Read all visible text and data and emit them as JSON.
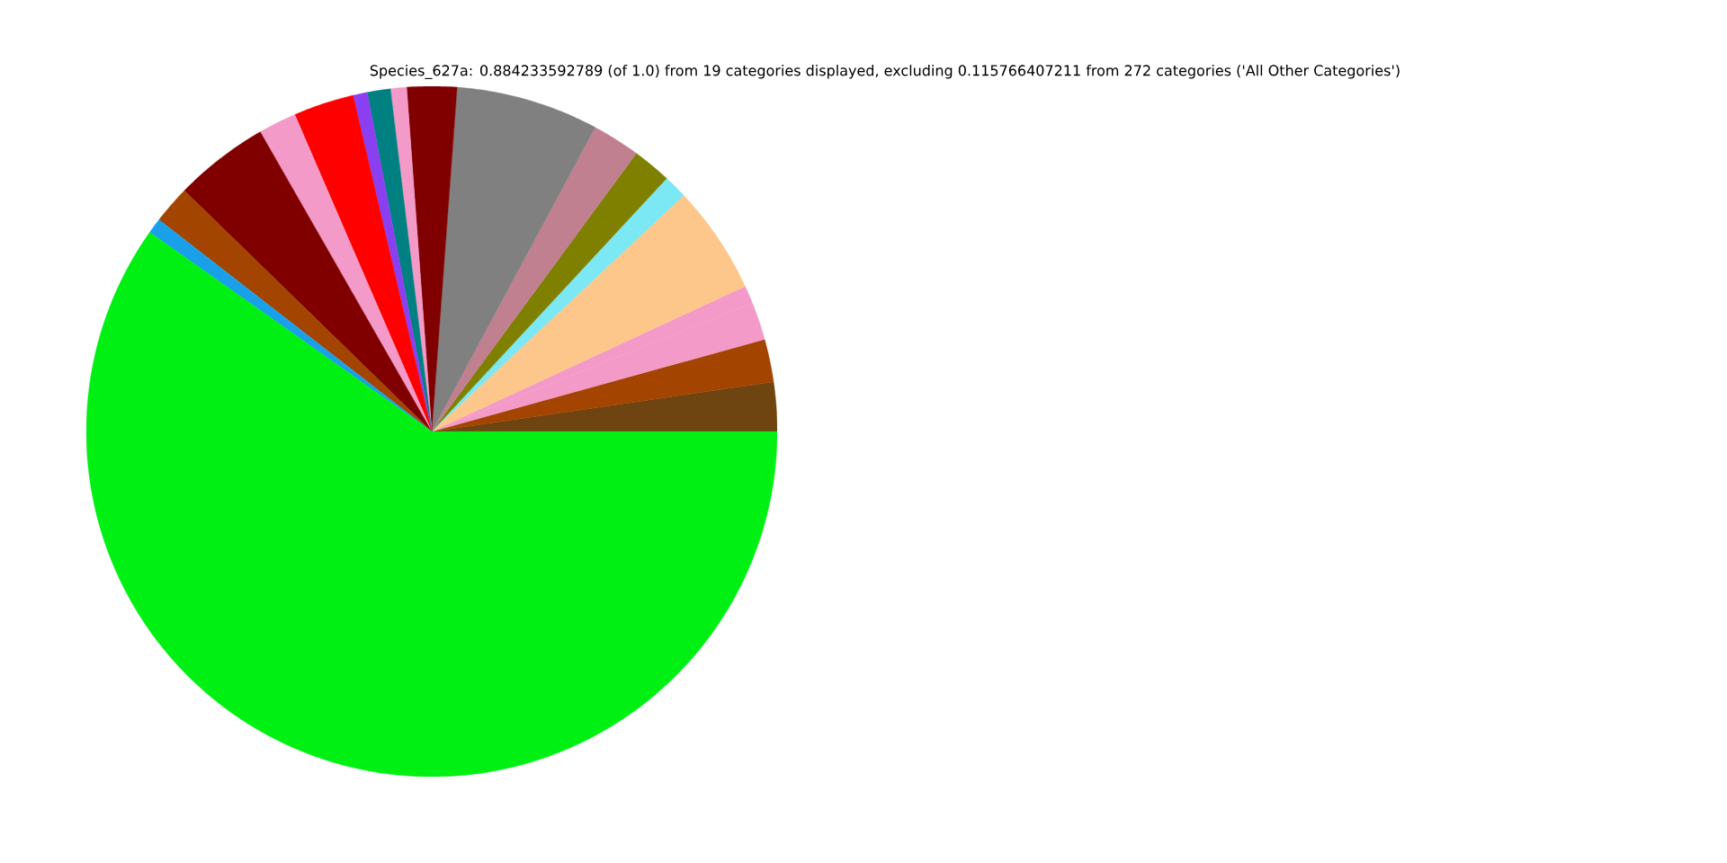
{
  "chart_data": {
    "type": "pie",
    "title": "Species_627a: 0.884233592789 (of 1.0) from 19 categories displayed, excluding 0.115766407211 from 272 categories ('All Other Categories')",
    "categories": [
      null,
      null,
      null,
      null,
      null,
      null,
      null,
      null,
      null,
      null,
      null,
      null,
      null,
      null,
      null,
      null,
      null,
      null,
      null
    ],
    "values": [
      2.3,
      2.0,
      1.75,
      0.86,
      5.08,
      1.11,
      1.81,
      2.25,
      6.67,
      2.33,
      0.75,
      1.08,
      0.67,
      2.83,
      1.78,
      4.44,
      1.78,
      0.72,
      59.79
    ],
    "colors": [
      "#6e4410",
      "#a34400",
      "#f49ac8",
      "#f49ac8",
      "#fdc78b",
      "#7ce8f4",
      "#808000",
      "#c08090",
      "#808080",
      "#800000",
      "#f49ac8",
      "#008080",
      "#8a3ff0",
      "#ff0000",
      "#f49ac8",
      "#800000",
      "#a34400",
      "#1aa0e8",
      "#00f014"
    ]
  }
}
